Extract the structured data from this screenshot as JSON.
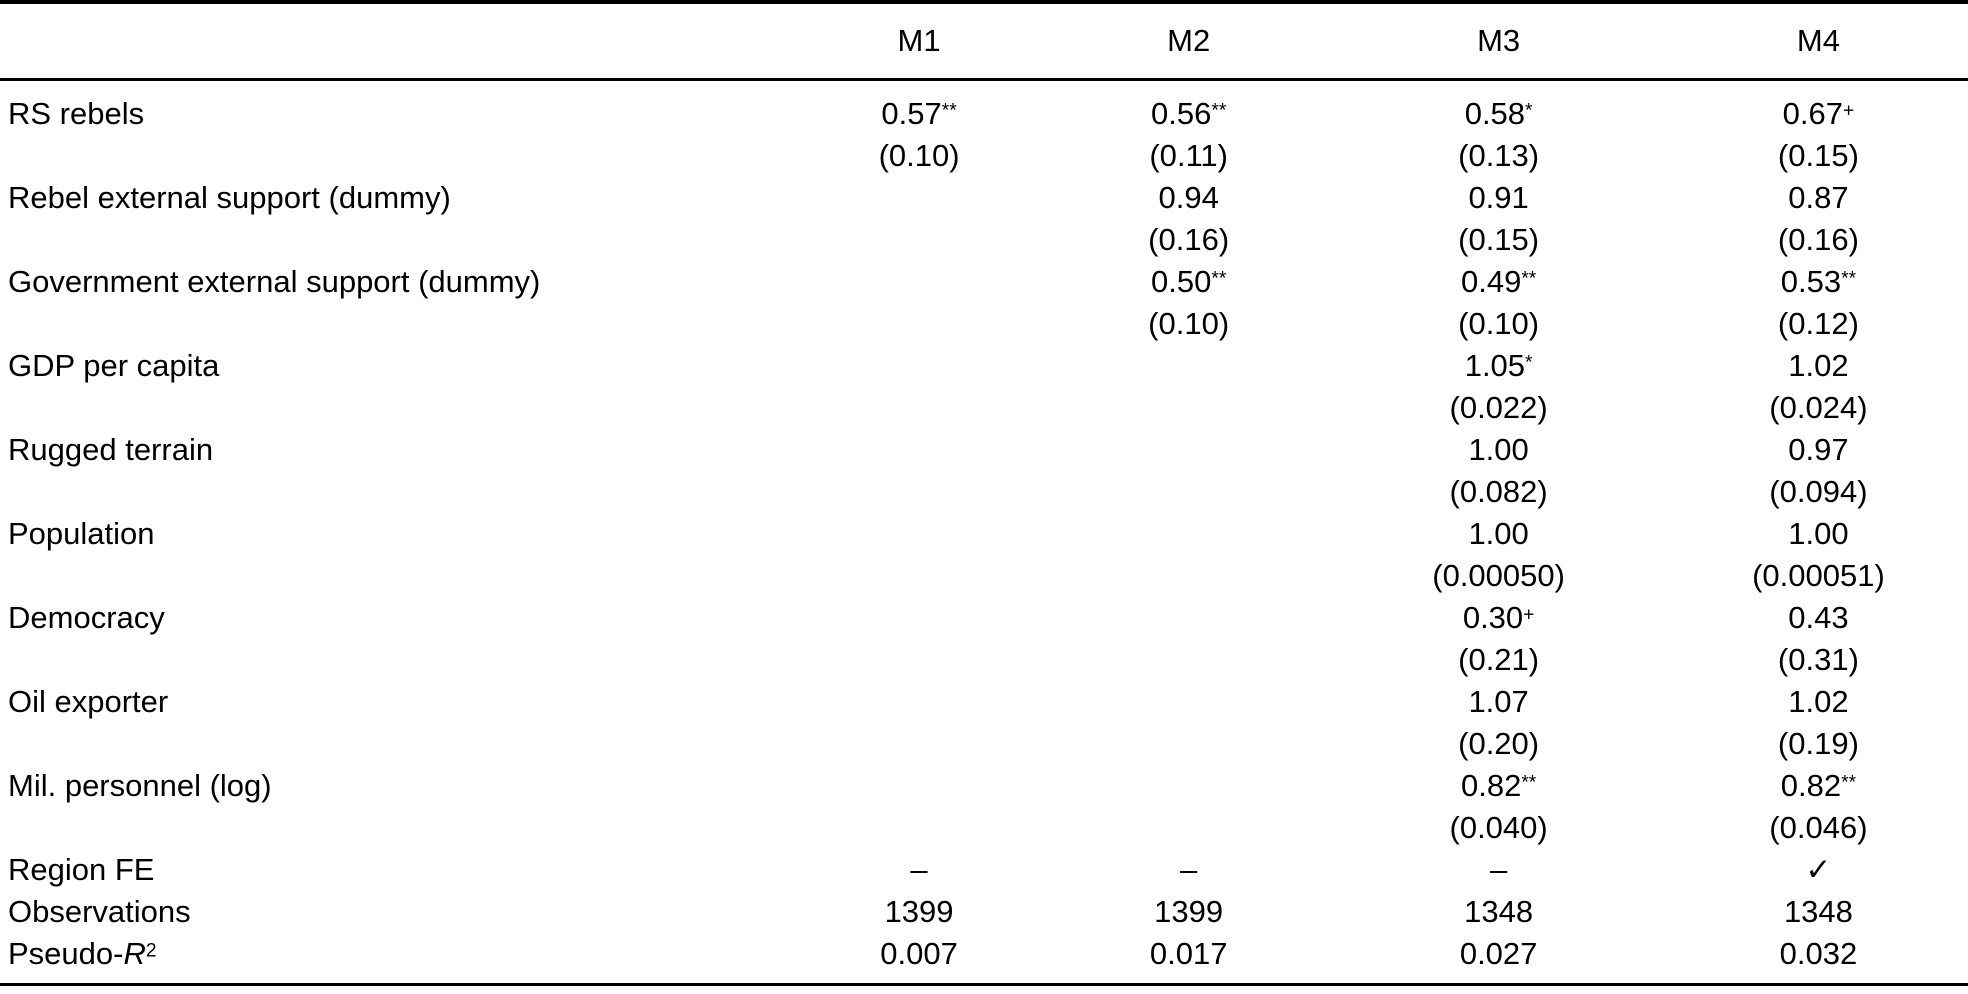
{
  "table": {
    "header": {
      "label_column": "",
      "columns": [
        "M1",
        "M2",
        "M3",
        "M4"
      ]
    },
    "rows": [
      {
        "label": "RS rebels",
        "cells": [
          {
            "est": "0.57",
            "marker": "**",
            "se": "(0.10)"
          },
          {
            "est": "0.56",
            "marker": "**",
            "se": "(0.11)"
          },
          {
            "est": "0.58",
            "marker": "*",
            "se": "(0.13)"
          },
          {
            "est": "0.67",
            "marker": "+",
            "se": "(0.15)"
          }
        ]
      },
      {
        "label": "Rebel external support (dummy)",
        "cells": [
          {
            "est": "",
            "marker": "",
            "se": ""
          },
          {
            "est": "0.94",
            "marker": "",
            "se": "(0.16)"
          },
          {
            "est": "0.91",
            "marker": "",
            "se": "(0.15)"
          },
          {
            "est": "0.87",
            "marker": "",
            "se": "(0.16)"
          }
        ]
      },
      {
        "label": "Government external support (dummy)",
        "cells": [
          {
            "est": "",
            "marker": "",
            "se": ""
          },
          {
            "est": "0.50",
            "marker": "**",
            "se": "(0.10)"
          },
          {
            "est": "0.49",
            "marker": "**",
            "se": "(0.10)"
          },
          {
            "est": "0.53",
            "marker": "**",
            "se": "(0.12)"
          }
        ]
      },
      {
        "label": "GDP per capita",
        "cells": [
          {
            "est": "",
            "marker": "",
            "se": ""
          },
          {
            "est": "",
            "marker": "",
            "se": ""
          },
          {
            "est": "1.05",
            "marker": "*",
            "se": "(0.022)"
          },
          {
            "est": "1.02",
            "marker": "",
            "se": "(0.024)"
          }
        ]
      },
      {
        "label": "Rugged terrain",
        "cells": [
          {
            "est": "",
            "marker": "",
            "se": ""
          },
          {
            "est": "",
            "marker": "",
            "se": ""
          },
          {
            "est": "1.00",
            "marker": "",
            "se": "(0.082)"
          },
          {
            "est": "0.97",
            "marker": "",
            "se": "(0.094)"
          }
        ]
      },
      {
        "label": "Population",
        "cells": [
          {
            "est": "",
            "marker": "",
            "se": ""
          },
          {
            "est": "",
            "marker": "",
            "se": ""
          },
          {
            "est": "1.00",
            "marker": "",
            "se": "(0.00050)"
          },
          {
            "est": "1.00",
            "marker": "",
            "se": "(0.00051)"
          }
        ]
      },
      {
        "label": "Democracy",
        "cells": [
          {
            "est": "",
            "marker": "",
            "se": ""
          },
          {
            "est": "",
            "marker": "",
            "se": ""
          },
          {
            "est": "0.30",
            "marker": "+",
            "se": "(0.21)"
          },
          {
            "est": "0.43",
            "marker": "",
            "se": "(0.31)"
          }
        ]
      },
      {
        "label": "Oil exporter",
        "cells": [
          {
            "est": "",
            "marker": "",
            "se": ""
          },
          {
            "est": "",
            "marker": "",
            "se": ""
          },
          {
            "est": "1.07",
            "marker": "",
            "se": "(0.20)"
          },
          {
            "est": "1.02",
            "marker": "",
            "se": "(0.19)"
          }
        ]
      },
      {
        "label": "Mil. personnel (log)",
        "cells": [
          {
            "est": "",
            "marker": "",
            "se": ""
          },
          {
            "est": "",
            "marker": "",
            "se": ""
          },
          {
            "est": "0.82",
            "marker": "**",
            "se": "(0.040)"
          },
          {
            "est": "0.82",
            "marker": "**",
            "se": "(0.046)"
          }
        ]
      }
    ],
    "summary_rows": [
      {
        "label": "Region FE",
        "values": [
          "–",
          "–",
          "–",
          "✓"
        ]
      },
      {
        "label": "Observations",
        "values": [
          "1399",
          "1399",
          "1348",
          "1348"
        ]
      },
      {
        "label_prefix": "Pseudo-",
        "label_italic": "R",
        "label_sup": "2",
        "values": [
          "0.007",
          "0.017",
          "0.027",
          "0.032"
        ]
      }
    ]
  }
}
